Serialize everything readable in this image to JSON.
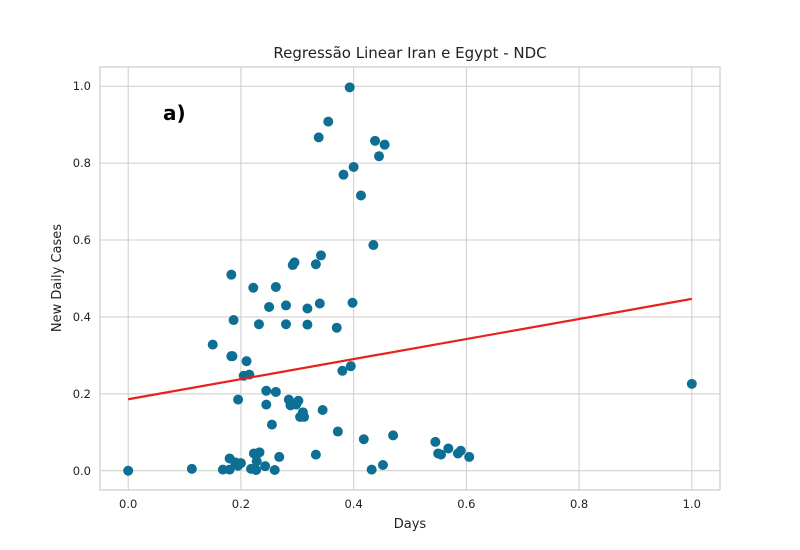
{
  "chart_data": {
    "type": "scatter",
    "title": "Regressão Linear Iran e Egypt - NDC",
    "xlabel": "Days",
    "ylabel": "New Daily Cases",
    "annotation": "a)",
    "xlim": [
      -0.05,
      1.05
    ],
    "ylim": [
      -0.05,
      1.05
    ],
    "xticks": [
      0.0,
      0.2,
      0.4,
      0.6,
      0.8,
      1.0
    ],
    "yticks": [
      0.0,
      0.2,
      0.4,
      0.6,
      0.8,
      1.0
    ],
    "xtick_labels": [
      "0.0",
      "0.2",
      "0.4",
      "0.6",
      "0.8",
      "1.0"
    ],
    "ytick_labels": [
      "0.0",
      "0.2",
      "0.4",
      "0.6",
      "0.8",
      "1.0"
    ],
    "grid": true,
    "colors": {
      "points": "#0e6f95",
      "line": "#e8201e",
      "grid": "#cccccc",
      "frame": "#cccccc"
    },
    "points": [
      [
        0.0,
        0.0
      ],
      [
        0.113,
        0.005
      ],
      [
        0.168,
        0.003
      ],
      [
        0.18,
        0.003
      ],
      [
        0.18,
        0.032
      ],
      [
        0.19,
        0.022
      ],
      [
        0.195,
        0.013
      ],
      [
        0.2,
        0.02
      ],
      [
        0.218,
        0.005
      ],
      [
        0.223,
        0.045
      ],
      [
        0.227,
        0.002
      ],
      [
        0.228,
        0.025
      ],
      [
        0.233,
        0.048
      ],
      [
        0.243,
        0.012
      ],
      [
        0.26,
        0.002
      ],
      [
        0.268,
        0.036
      ],
      [
        0.333,
        0.042
      ],
      [
        0.183,
        0.298
      ],
      [
        0.185,
        0.298
      ],
      [
        0.15,
        0.328
      ],
      [
        0.183,
        0.51
      ],
      [
        0.187,
        0.392
      ],
      [
        0.195,
        0.185
      ],
      [
        0.205,
        0.247
      ],
      [
        0.21,
        0.285
      ],
      [
        0.215,
        0.25
      ],
      [
        0.222,
        0.476
      ],
      [
        0.232,
        0.381
      ],
      [
        0.245,
        0.208
      ],
      [
        0.245,
        0.172
      ],
      [
        0.25,
        0.426
      ],
      [
        0.255,
        0.12
      ],
      [
        0.262,
        0.205
      ],
      [
        0.262,
        0.478
      ],
      [
        0.28,
        0.43
      ],
      [
        0.28,
        0.381
      ],
      [
        0.285,
        0.185
      ],
      [
        0.288,
        0.17
      ],
      [
        0.292,
        0.535
      ],
      [
        0.295,
        0.542
      ],
      [
        0.298,
        0.172
      ],
      [
        0.302,
        0.182
      ],
      [
        0.305,
        0.14
      ],
      [
        0.31,
        0.152
      ],
      [
        0.312,
        0.14
      ],
      [
        0.318,
        0.422
      ],
      [
        0.318,
        0.38
      ],
      [
        0.333,
        0.537
      ],
      [
        0.338,
        0.867
      ],
      [
        0.34,
        0.435
      ],
      [
        0.342,
        0.56
      ],
      [
        0.345,
        0.158
      ],
      [
        0.355,
        0.908
      ],
      [
        0.37,
        0.372
      ],
      [
        0.372,
        0.102
      ],
      [
        0.38,
        0.26
      ],
      [
        0.382,
        0.77
      ],
      [
        0.393,
        0.997
      ],
      [
        0.395,
        0.272
      ],
      [
        0.398,
        0.437
      ],
      [
        0.4,
        0.79
      ],
      [
        0.413,
        0.716
      ],
      [
        0.418,
        0.082
      ],
      [
        0.432,
        0.003
      ],
      [
        0.435,
        0.587
      ],
      [
        0.438,
        0.858
      ],
      [
        0.445,
        0.818
      ],
      [
        0.452,
        0.015
      ],
      [
        0.455,
        0.848
      ],
      [
        0.47,
        0.092
      ],
      [
        0.545,
        0.075
      ],
      [
        0.55,
        0.045
      ],
      [
        0.555,
        0.042
      ],
      [
        0.568,
        0.058
      ],
      [
        0.585,
        0.045
      ],
      [
        0.59,
        0.052
      ],
      [
        0.605,
        0.036
      ],
      [
        1.0,
        0.226
      ]
    ],
    "regression_line": {
      "x": [
        0.0,
        1.0
      ],
      "y": [
        0.186,
        0.447
      ]
    }
  }
}
